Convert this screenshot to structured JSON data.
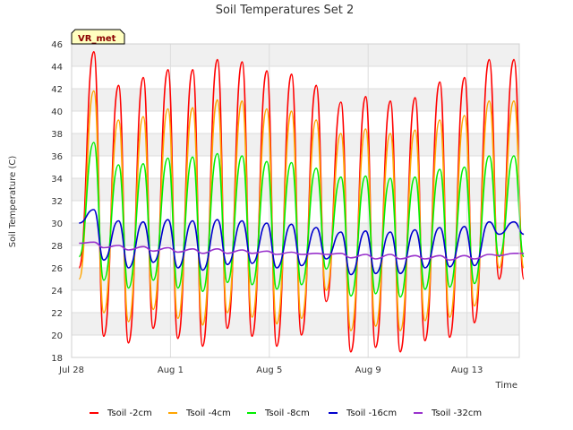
{
  "chart_data": {
    "type": "line",
    "title": "Soil Temperatures Set 2",
    "xlabel": "Time",
    "ylabel": "Soil Temperature (C)",
    "site_tag": "VR_met",
    "ylim": [
      18,
      46
    ],
    "yticks": [
      18,
      20,
      22,
      24,
      26,
      28,
      30,
      32,
      34,
      36,
      38,
      40,
      42,
      44,
      46
    ],
    "xlim": [
      "2023-07-28",
      "2023-08-16"
    ],
    "xticks": [
      "Jul 28",
      "Aug 1",
      "Aug 5",
      "Aug 9",
      "Aug 13"
    ],
    "grid": true,
    "legend_position": "bottom",
    "x_days": [
      "Jul 28.3",
      "Jul 28.9",
      "Jul 29.3",
      "Jul 29.9",
      "Jul 30.3",
      "Jul 30.9",
      "Jul 31.3",
      "Jul 31.9",
      "Aug 1.3",
      "Aug 1.9",
      "Aug 2.3",
      "Aug 2.9",
      "Aug 3.3",
      "Aug 3.9",
      "Aug 4.3",
      "Aug 4.9",
      "Aug 5.3",
      "Aug 5.9",
      "Aug 6.3",
      "Aug 6.9",
      "Aug 7.3",
      "Aug 7.9",
      "Aug 8.3",
      "Aug 8.9",
      "Aug 9.3",
      "Aug 9.9",
      "Aug 10.3",
      "Aug 10.9",
      "Aug 11.3",
      "Aug 11.9",
      "Aug 12.3",
      "Aug 12.9",
      "Aug 13.3",
      "Aug 13.9",
      "Aug 14.3",
      "Aug 14.9",
      "Aug 15.3"
    ],
    "x_offsets": [
      0.3,
      0.9,
      1.3,
      1.9,
      2.3,
      2.9,
      3.3,
      3.9,
      4.3,
      4.9,
      5.3,
      5.9,
      6.3,
      6.9,
      7.3,
      7.9,
      8.3,
      8.9,
      9.3,
      9.9,
      10.3,
      10.9,
      11.3,
      11.9,
      12.3,
      12.9,
      13.3,
      13.9,
      14.3,
      14.9,
      15.3,
      15.9,
      16.3,
      16.9,
      17.3,
      17.9,
      18.3
    ],
    "series": [
      {
        "name": "Tsoil -2cm",
        "color": "#ff0000",
        "values": [
          26.0,
          45.3,
          19.9,
          42.3,
          19.3,
          43.0,
          20.6,
          43.7,
          19.7,
          43.7,
          19.0,
          44.6,
          20.6,
          44.4,
          19.9,
          43.6,
          19.0,
          43.3,
          20.0,
          42.3,
          23.0,
          40.8,
          18.5,
          41.3,
          18.9,
          40.9,
          18.5,
          41.2,
          19.5,
          42.6,
          19.8,
          43.0,
          21.1,
          44.6,
          25.0,
          44.6,
          25.0
        ]
      },
      {
        "name": "Tsoil -4cm",
        "color": "#ffa500",
        "values": [
          25.0,
          41.8,
          22.0,
          39.2,
          21.2,
          39.5,
          22.3,
          40.2,
          21.5,
          40.3,
          20.9,
          41.0,
          22.0,
          40.9,
          21.6,
          40.2,
          21.0,
          40.0,
          21.5,
          39.2,
          24.0,
          38.0,
          20.4,
          38.4,
          20.8,
          38.0,
          20.4,
          38.3,
          21.3,
          39.2,
          21.6,
          39.6,
          22.6,
          40.9,
          26.0,
          40.9,
          26.0
        ]
      },
      {
        "name": "Tsoil -8cm",
        "color": "#00ee00",
        "values": [
          27.0,
          37.2,
          24.9,
          35.2,
          24.2,
          35.3,
          24.9,
          35.8,
          24.2,
          35.9,
          23.9,
          36.2,
          24.7,
          36.0,
          24.5,
          35.5,
          24.1,
          35.4,
          24.5,
          34.9,
          25.9,
          34.1,
          23.5,
          34.2,
          23.7,
          34.0,
          23.4,
          34.1,
          24.1,
          34.8,
          24.3,
          35.0,
          24.6,
          36.0,
          27.0,
          36.0,
          27.0
        ]
      },
      {
        "name": "Tsoil -16cm",
        "color": "#0000cd",
        "values": [
          30.0,
          31.2,
          26.7,
          30.2,
          26.0,
          30.1,
          26.5,
          30.3,
          26.0,
          30.2,
          25.8,
          30.3,
          26.3,
          30.2,
          26.4,
          30.0,
          26.0,
          29.9,
          26.2,
          29.6,
          26.8,
          29.2,
          25.4,
          29.3,
          25.5,
          29.2,
          25.5,
          29.4,
          26.0,
          29.6,
          26.1,
          29.7,
          26.2,
          30.1,
          29.0,
          30.1,
          29.0
        ]
      },
      {
        "name": "Tsoil -32cm",
        "color": "#9932cc",
        "values": [
          28.2,
          28.3,
          27.8,
          28.0,
          27.6,
          27.9,
          27.5,
          27.8,
          27.4,
          27.7,
          27.3,
          27.7,
          27.3,
          27.6,
          27.3,
          27.5,
          27.2,
          27.4,
          27.2,
          27.3,
          27.2,
          27.3,
          26.9,
          27.2,
          26.8,
          27.2,
          26.8,
          27.1,
          26.8,
          27.1,
          26.7,
          27.1,
          26.8,
          27.2,
          27.1,
          27.3,
          27.3
        ]
      }
    ]
  }
}
